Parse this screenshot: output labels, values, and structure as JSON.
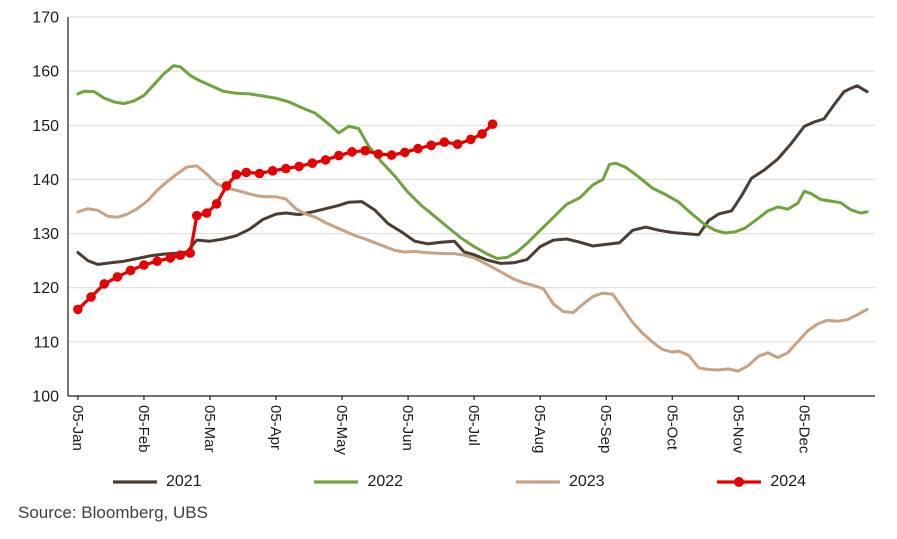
{
  "source_note": "Source: Bloomberg, UBS",
  "colors": {
    "grid": "#d9d9d9",
    "axis": "#1a1a1a",
    "text": "#1a1a1a",
    "source_text": "#3f3f3f"
  },
  "chart_data": {
    "type": "line",
    "title": "",
    "xlabel": "",
    "ylabel": "",
    "grid": "horizontal",
    "legend_position": "bottom",
    "ylim": [
      100,
      170
    ],
    "yticks": [
      100,
      110,
      120,
      130,
      140,
      150,
      160,
      170
    ],
    "xlim": [
      -0.15,
      12.07
    ],
    "x_tick_labels": [
      "05-Jan",
      "05-Feb",
      "05-Mar",
      "05-Apr",
      "05-May",
      "05-Jun",
      "05-Jul",
      "05-Aug",
      "05-Sep",
      "05-Oct",
      "05-Nov",
      "05-Dec"
    ],
    "x_tick_positions": [
      0,
      1,
      2,
      3,
      4,
      5,
      6,
      7,
      8,
      9,
      10,
      11
    ],
    "series": [
      {
        "name": "2021",
        "color": "#4a3e33",
        "marker": false,
        "x": [
          0.0,
          0.15,
          0.3,
          0.5,
          0.7,
          0.9,
          1.1,
          1.3,
          1.5,
          1.65,
          1.8,
          2.0,
          2.2,
          2.4,
          2.6,
          2.8,
          3.0,
          3.15,
          3.35,
          3.55,
          3.75,
          3.95,
          4.1,
          4.3,
          4.5,
          4.7,
          4.9,
          5.1,
          5.3,
          5.5,
          5.7,
          5.85,
          6.0,
          6.2,
          6.4,
          6.6,
          6.8,
          7.0,
          7.2,
          7.4,
          7.6,
          7.8,
          8.0,
          8.2,
          8.4,
          8.6,
          8.8,
          9.0,
          9.2,
          9.4,
          9.55,
          9.7,
          9.9,
          10.05,
          10.2,
          10.4,
          10.6,
          10.8,
          11.0,
          11.15,
          11.3,
          11.45,
          11.6,
          11.7,
          11.8,
          11.95
        ],
        "y": [
          126.5,
          125.0,
          124.3,
          124.6,
          124.9,
          125.4,
          125.9,
          126.2,
          126.4,
          126.6,
          128.8,
          128.6,
          129.0,
          129.6,
          130.8,
          132.6,
          133.6,
          133.8,
          133.5,
          134.0,
          134.6,
          135.2,
          135.8,
          135.9,
          134.3,
          131.8,
          130.3,
          128.6,
          128.1,
          128.4,
          128.6,
          126.6,
          126.1,
          125.1,
          124.5,
          124.6,
          125.2,
          127.6,
          128.8,
          129.0,
          128.4,
          127.7,
          128.0,
          128.3,
          130.6,
          131.2,
          130.6,
          130.2,
          130.0,
          129.8,
          132.4,
          133.6,
          134.2,
          137.0,
          140.2,
          141.8,
          143.8,
          146.6,
          149.8,
          150.6,
          151.2,
          153.8,
          156.2,
          156.8,
          157.3,
          156.2
        ]
      },
      {
        "name": "2022",
        "color": "#70a33d",
        "marker": false,
        "x": [
          0.0,
          0.1,
          0.25,
          0.4,
          0.55,
          0.7,
          0.85,
          1.0,
          1.15,
          1.3,
          1.45,
          1.55,
          1.7,
          1.85,
          2.0,
          2.2,
          2.4,
          2.6,
          2.8,
          3.0,
          3.2,
          3.4,
          3.6,
          3.8,
          3.95,
          4.1,
          4.25,
          4.4,
          4.6,
          4.8,
          5.0,
          5.2,
          5.4,
          5.6,
          5.8,
          6.0,
          6.2,
          6.35,
          6.5,
          6.65,
          6.8,
          7.0,
          7.2,
          7.4,
          7.6,
          7.8,
          7.95,
          8.05,
          8.15,
          8.3,
          8.5,
          8.7,
          8.9,
          9.1,
          9.3,
          9.5,
          9.65,
          9.8,
          9.95,
          10.1,
          10.3,
          10.45,
          10.6,
          10.75,
          10.9,
          11.0,
          11.1,
          11.25,
          11.4,
          11.55,
          11.7,
          11.85,
          11.95
        ],
        "y": [
          155.8,
          156.3,
          156.2,
          155.0,
          154.3,
          154.0,
          154.5,
          155.5,
          157.5,
          159.5,
          161.0,
          160.8,
          159.2,
          158.2,
          157.4,
          156.3,
          155.9,
          155.8,
          155.4,
          155.0,
          154.3,
          153.2,
          152.2,
          150.2,
          148.6,
          149.8,
          149.4,
          146.2,
          143.2,
          140.6,
          137.6,
          135.2,
          133.2,
          131.2,
          129.2,
          127.6,
          126.2,
          125.4,
          125.6,
          126.6,
          128.2,
          130.6,
          133.0,
          135.4,
          136.6,
          139.0,
          140.0,
          142.8,
          143.0,
          142.2,
          140.4,
          138.4,
          137.2,
          135.8,
          133.6,
          131.6,
          130.6,
          130.1,
          130.3,
          131.0,
          132.8,
          134.2,
          134.9,
          134.5,
          135.6,
          137.8,
          137.4,
          136.3,
          136.0,
          135.7,
          134.4,
          133.8,
          134.0
        ]
      },
      {
        "name": "2023",
        "color": "#c9a183",
        "marker": false,
        "x": [
          0.0,
          0.15,
          0.3,
          0.45,
          0.6,
          0.75,
          0.9,
          1.05,
          1.2,
          1.35,
          1.5,
          1.65,
          1.8,
          1.95,
          2.1,
          2.25,
          2.4,
          2.55,
          2.7,
          2.85,
          3.0,
          3.15,
          3.3,
          3.45,
          3.6,
          3.75,
          3.9,
          4.05,
          4.2,
          4.35,
          4.5,
          4.65,
          4.8,
          4.95,
          5.1,
          5.25,
          5.4,
          5.55,
          5.7,
          5.85,
          6.0,
          6.15,
          6.3,
          6.45,
          6.6,
          6.75,
          6.9,
          7.05,
          7.2,
          7.35,
          7.5,
          7.65,
          7.8,
          7.95,
          8.1,
          8.25,
          8.4,
          8.55,
          8.7,
          8.85,
          9.0,
          9.1,
          9.25,
          9.4,
          9.55,
          9.7,
          9.85,
          10.0,
          10.15,
          10.3,
          10.45,
          10.6,
          10.75,
          10.9,
          11.05,
          11.2,
          11.35,
          11.5,
          11.65,
          11.8,
          11.95
        ],
        "y": [
          134.0,
          134.6,
          134.3,
          133.2,
          133.0,
          133.6,
          134.6,
          136.0,
          138.0,
          139.6,
          141.0,
          142.3,
          142.5,
          141.0,
          139.2,
          138.4,
          138.0,
          137.5,
          137.0,
          136.8,
          136.8,
          136.4,
          134.6,
          133.6,
          133.0,
          132.0,
          131.2,
          130.4,
          129.6,
          129.0,
          128.3,
          127.6,
          126.9,
          126.6,
          126.7,
          126.5,
          126.4,
          126.3,
          126.3,
          126.0,
          125.5,
          124.6,
          123.6,
          122.6,
          121.6,
          120.9,
          120.4,
          119.8,
          117.0,
          115.6,
          115.4,
          117.0,
          118.4,
          119.0,
          118.8,
          116.2,
          113.6,
          111.6,
          110.0,
          108.6,
          108.1,
          108.3,
          107.5,
          105.2,
          104.9,
          104.8,
          105.0,
          104.6,
          105.6,
          107.3,
          108.0,
          107.1,
          108.0,
          110.0,
          112.0,
          113.3,
          114.0,
          113.8,
          114.1,
          115.0,
          116.0
        ]
      },
      {
        "name": "2024",
        "color": "#e60100",
        "marker": true,
        "x": [
          0.0,
          0.2,
          0.4,
          0.6,
          0.8,
          1.0,
          1.2,
          1.4,
          1.55,
          1.7,
          1.8,
          1.95,
          2.1,
          2.25,
          2.4,
          2.55,
          2.75,
          2.95,
          3.15,
          3.35,
          3.55,
          3.75,
          3.95,
          4.15,
          4.35,
          4.55,
          4.75,
          4.95,
          5.15,
          5.35,
          5.55,
          5.75,
          5.95,
          6.12,
          6.28
        ],
        "y": [
          116.0,
          118.3,
          120.7,
          122.0,
          123.2,
          124.2,
          124.9,
          125.5,
          126.0,
          126.4,
          133.3,
          133.8,
          135.5,
          138.8,
          140.9,
          141.3,
          141.1,
          141.6,
          142.0,
          142.4,
          143.0,
          143.6,
          144.4,
          145.1,
          145.3,
          144.7,
          144.5,
          145.0,
          145.7,
          146.3,
          146.9,
          146.5,
          147.4,
          148.4,
          150.2
        ]
      }
    ]
  }
}
